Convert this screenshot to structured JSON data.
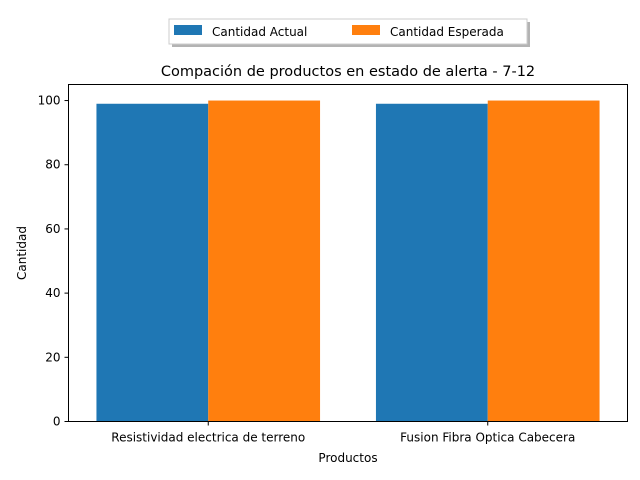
{
  "chart_data": {
    "type": "bar",
    "title": "Compación de productos en estado de alerta - 7-12",
    "xlabel": "Productos",
    "ylabel": "Cantidad",
    "categories": [
      "Resistividad electrica de terreno",
      "Fusion Fibra Optica Cabecera"
    ],
    "series": [
      {
        "name": "Cantidad Actual",
        "color": "#1f77b4",
        "values": [
          99,
          99
        ]
      },
      {
        "name": "Cantidad Esperada",
        "color": "#ff7f0e",
        "values": [
          100,
          100
        ]
      }
    ],
    "ylim": [
      0,
      105
    ],
    "yticks": [
      0,
      20,
      40,
      60,
      80,
      100
    ],
    "grid": false,
    "legend_position": "top-center"
  }
}
